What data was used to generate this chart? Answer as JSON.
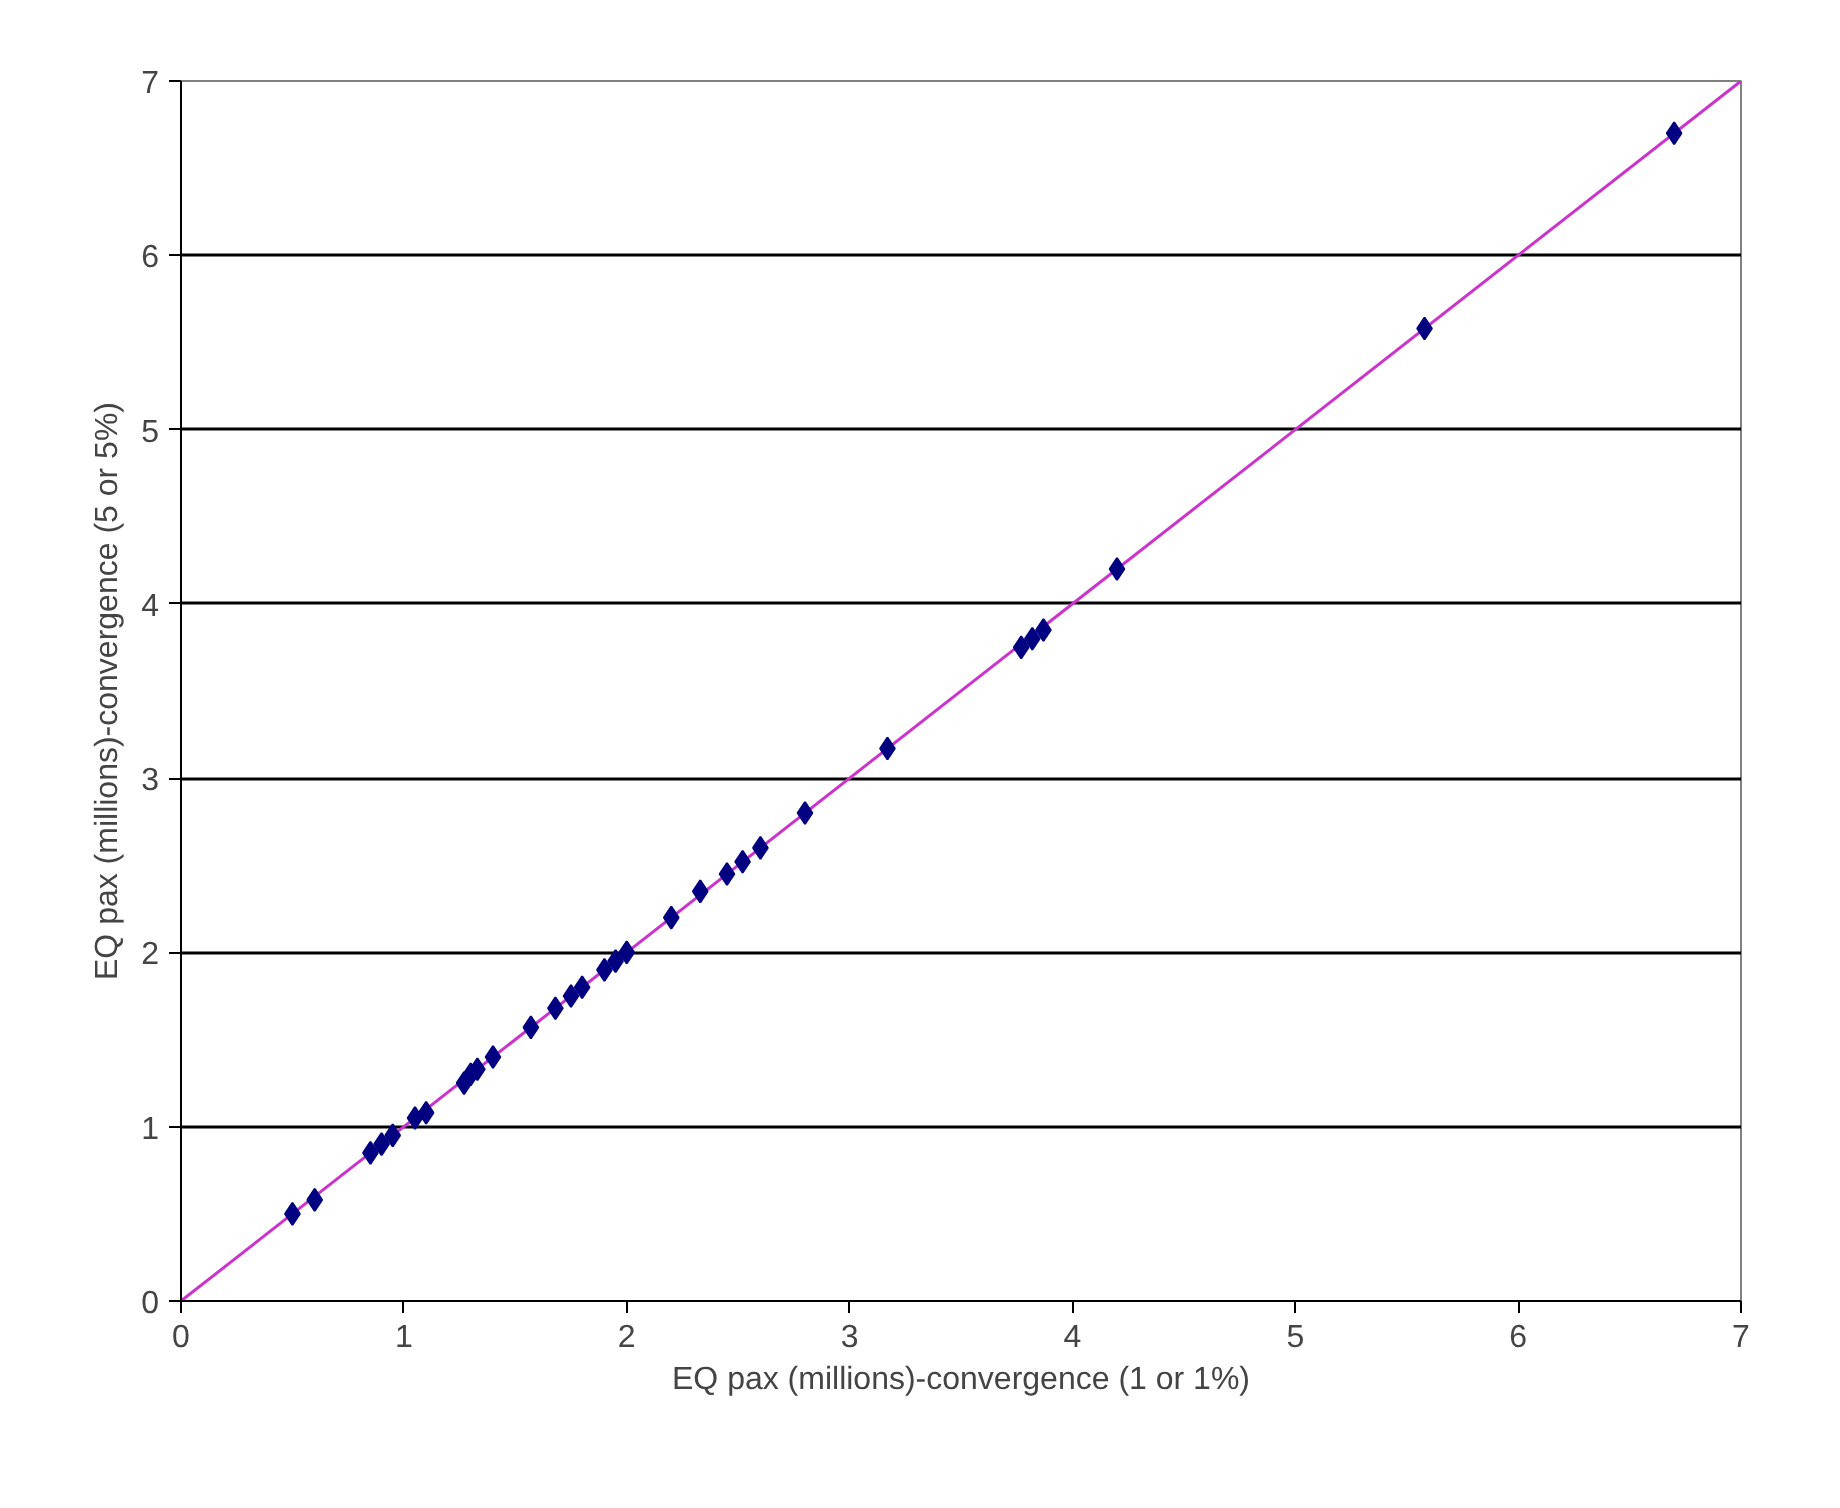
{
  "chart_data": {
    "type": "scatter",
    "xlabel": "EQ pax (millions)-convergence (1 or 1%)",
    "ylabel": "EQ pax (millions)-convergence (5 or 5%)",
    "xlim": [
      0,
      7
    ],
    "ylim": [
      0,
      7
    ],
    "xticks": [
      0,
      1,
      2,
      3,
      4,
      5,
      6,
      7
    ],
    "yticks": [
      0,
      1,
      2,
      3,
      4,
      5,
      6,
      7
    ],
    "grid": "y",
    "series": [
      {
        "marker": "diamond",
        "color": "#000080",
        "x": [
          0.5,
          0.6,
          0.85,
          0.9,
          0.95,
          1.05,
          1.1,
          1.27,
          1.3,
          1.33,
          1.4,
          1.57,
          1.68,
          1.75,
          1.8,
          1.9,
          1.95,
          2.0,
          2.2,
          2.33,
          2.45,
          2.52,
          2.6,
          2.8,
          3.17,
          3.77,
          3.82,
          3.87,
          4.2,
          5.58,
          6.7
        ],
        "values": [
          0.5,
          0.58,
          0.85,
          0.9,
          0.95,
          1.05,
          1.08,
          1.25,
          1.3,
          1.33,
          1.4,
          1.57,
          1.68,
          1.75,
          1.8,
          1.9,
          1.95,
          2.0,
          2.2,
          2.35,
          2.45,
          2.52,
          2.6,
          2.8,
          3.17,
          3.75,
          3.8,
          3.85,
          4.2,
          5.58,
          6.7
        ]
      },
      {
        "type": "line",
        "marker": "none",
        "color": "#cc33cc",
        "x": [
          0,
          7
        ],
        "values": [
          0,
          7
        ]
      }
    ]
  }
}
